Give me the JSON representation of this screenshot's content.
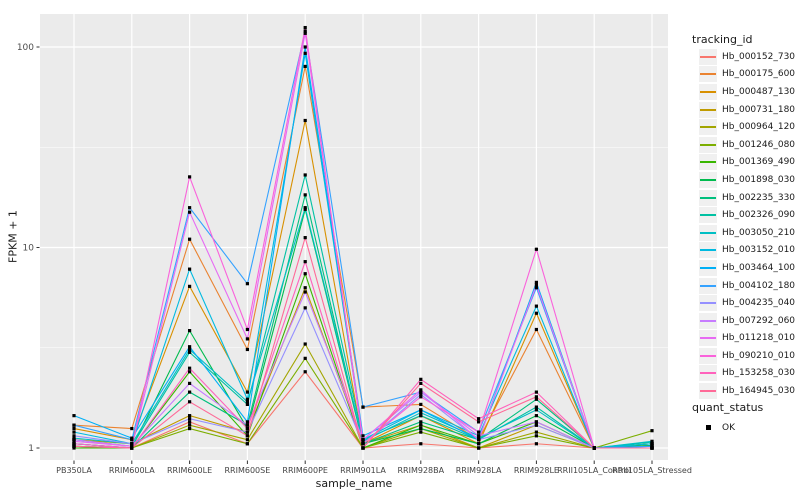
{
  "chart_data": {
    "type": "line",
    "xlabel": "sample_name",
    "ylabel": "FPKM + 1",
    "y_scale": "log10",
    "y_ticks": [
      "1",
      "10",
      "100"
    ],
    "y_tick_values": [
      1,
      10,
      100
    ],
    "ylim": [
      0.87,
      146
    ],
    "grid": "major-white-minor-white-on-gray-panel",
    "legend_position": "right",
    "point_shape": "filled-square",
    "point_color": "#000000",
    "panel_color": "#EBEBEB",
    "categories": [
      "PB350LA",
      "RRIM600LA",
      "RRIM600LE",
      "RRIM600SE",
      "RRIM600PE",
      "RRIM901LA",
      "RRIM928BA",
      "RRIM928LA",
      "RRIM928LE",
      "RRII105LA_Control",
      "RRII105LA_Stressed"
    ],
    "series": [
      {
        "name": "Hb_000152_730",
        "color": "#F8766D",
        "values": [
          1.05,
          1.0,
          1.35,
          1.05,
          2.4,
          1.0,
          1.05,
          1.0,
          1.05,
          1.0,
          1.0
        ]
      },
      {
        "name": "Hb_000175_600",
        "color": "#EA8331",
        "values": [
          1.3,
          1.25,
          11.0,
          3.1,
          80.0,
          1.6,
          1.65,
          1.1,
          3.9,
          1.0,
          1.0
        ]
      },
      {
        "name": "Hb_000487_130",
        "color": "#D89000",
        "values": [
          1.25,
          1.1,
          6.4,
          1.9,
          43.0,
          1.05,
          1.45,
          1.05,
          4.7,
          1.0,
          1.0
        ]
      },
      {
        "name": "Hb_000731_180",
        "color": "#C09B00",
        "values": [
          1.1,
          1.05,
          1.45,
          1.2,
          6.3,
          1.05,
          1.3,
          1.0,
          1.3,
          1.0,
          1.05
        ]
      },
      {
        "name": "Hb_000964_120",
        "color": "#A3A500",
        "values": [
          1.05,
          1.0,
          1.3,
          1.1,
          3.3,
          1.0,
          1.25,
          1.0,
          1.2,
          1.0,
          1.03
        ]
      },
      {
        "name": "Hb_001246_080",
        "color": "#7CAE00",
        "values": [
          1.02,
          1.0,
          1.25,
          1.05,
          2.8,
          1.0,
          1.2,
          1.0,
          1.15,
          1.0,
          1.22
        ]
      },
      {
        "name": "Hb_001369_490",
        "color": "#39B600",
        "values": [
          1.0,
          1.0,
          2.4,
          1.15,
          7.4,
          1.0,
          1.3,
          1.05,
          1.35,
          1.0,
          1.05
        ]
      },
      {
        "name": "Hb_001898_030",
        "color": "#00BB4E",
        "values": [
          1.02,
          1.0,
          3.85,
          1.25,
          15.5,
          1.05,
          1.25,
          1.05,
          1.45,
          1.0,
          1.03
        ]
      },
      {
        "name": "Hb_002235_330",
        "color": "#00BF7D",
        "values": [
          1.05,
          1.0,
          1.9,
          1.3,
          18.3,
          1.05,
          1.35,
          1.1,
          1.75,
          1.0,
          1.05
        ]
      },
      {
        "name": "Hb_002326_090",
        "color": "#00C1A3",
        "values": [
          1.1,
          1.02,
          3.0,
          1.65,
          23.0,
          1.1,
          1.45,
          1.1,
          1.6,
          1.0,
          1.07
        ]
      },
      {
        "name": "Hb_003050_210",
        "color": "#00BFC4",
        "values": [
          1.12,
          1.05,
          3.1,
          1.7,
          15.8,
          1.08,
          1.5,
          1.12,
          1.55,
          1.0,
          1.08
        ]
      },
      {
        "name": "Hb_003152_010",
        "color": "#00BAE0",
        "values": [
          1.2,
          1.05,
          7.8,
          1.75,
          93.0,
          1.1,
          1.55,
          1.15,
          5.1,
          1.0,
          1.05
        ]
      },
      {
        "name": "Hb_003464_100",
        "color": "#00B0F6",
        "values": [
          1.45,
          1.12,
          3.2,
          1.35,
          100.0,
          1.15,
          1.55,
          1.1,
          6.7,
          1.0,
          1.02
        ]
      },
      {
        "name": "Hb_004102_180",
        "color": "#35A2FF",
        "values": [
          1.3,
          1.1,
          15.8,
          6.6,
          120.0,
          1.6,
          1.9,
          1.2,
          6.3,
          1.0,
          1.02
        ]
      },
      {
        "name": "Hb_004235_040",
        "color": "#9590FF",
        "values": [
          1.15,
          1.05,
          1.4,
          1.2,
          5.0,
          1.05,
          1.85,
          1.1,
          1.3,
          1.0,
          1.0
        ]
      },
      {
        "name": "Hb_007292_060",
        "color": "#C77CFF",
        "values": [
          1.1,
          1.02,
          2.1,
          1.3,
          6.0,
          1.1,
          1.9,
          1.15,
          1.35,
          1.0,
          1.0
        ]
      },
      {
        "name": "Hb_011218_010",
        "color": "#E76BF3",
        "values": [
          1.08,
          1.02,
          15.0,
          3.5,
          117.0,
          1.1,
          1.95,
          1.1,
          6.5,
          1.0,
          1.0
        ]
      },
      {
        "name": "Hb_090210_010",
        "color": "#FA62DB",
        "values": [
          1.05,
          1.0,
          22.5,
          3.9,
          125.0,
          1.05,
          1.8,
          1.2,
          9.8,
          1.0,
          1.0
        ]
      },
      {
        "name": "Hb_153258_030",
        "color": "#FF62BC",
        "values": [
          1.02,
          1.0,
          2.5,
          1.25,
          8.5,
          1.0,
          2.2,
          1.4,
          1.9,
          1.0,
          1.0
        ]
      },
      {
        "name": "Hb_164945_030",
        "color": "#FF6A98",
        "values": [
          1.02,
          1.0,
          1.7,
          1.15,
          11.2,
          1.0,
          2.1,
          1.35,
          1.8,
          1.0,
          1.0
        ]
      }
    ]
  },
  "legend": {
    "tracking_title": "tracking_id",
    "quant_title": "quant_status",
    "quant_items": [
      {
        "label": "OK"
      }
    ]
  }
}
